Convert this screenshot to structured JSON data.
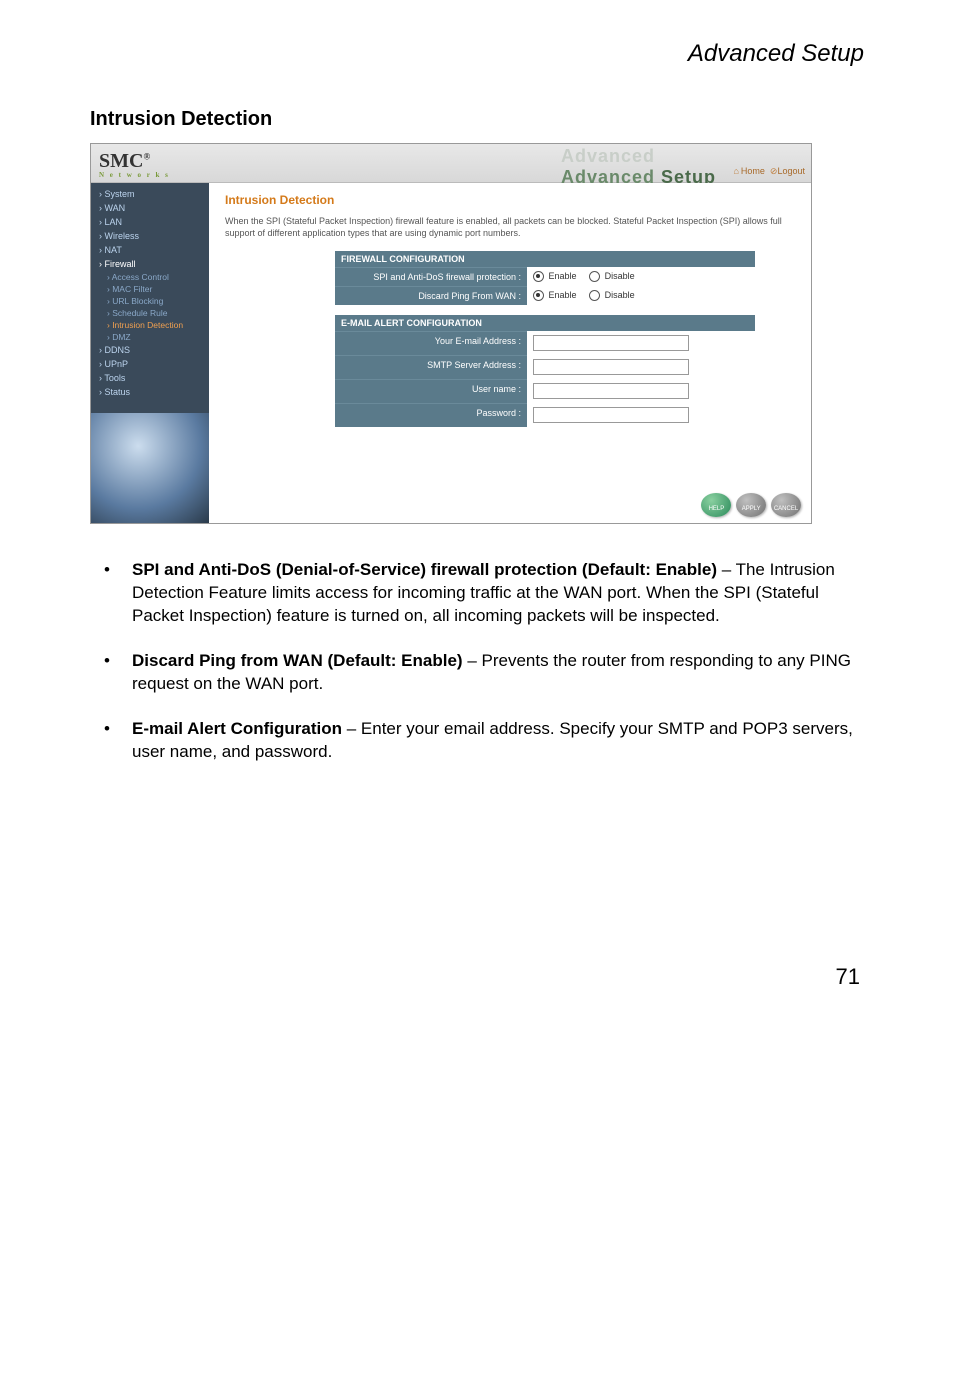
{
  "runningHead": "Advanced Setup",
  "sectionTitle": "Intrusion Detection",
  "screenshot": {
    "logo": "SMC",
    "logoR": "®",
    "logoSub": "N e t w o r k s",
    "ghostText": "Advanced",
    "setupText1": "Advanced",
    "setupText2": " Setup",
    "homeLink": "Home",
    "logoutLink": "Logout",
    "nav": {
      "items": [
        {
          "label": "System",
          "cls": "item"
        },
        {
          "label": "WAN",
          "cls": "item"
        },
        {
          "label": "LAN",
          "cls": "item"
        },
        {
          "label": "Wireless",
          "cls": "item"
        },
        {
          "label": "NAT",
          "cls": "item"
        },
        {
          "label": "Firewall",
          "cls": "item white"
        },
        {
          "label": "Access Control",
          "cls": "sub"
        },
        {
          "label": "MAC Filter",
          "cls": "sub"
        },
        {
          "label": "URL Blocking",
          "cls": "sub"
        },
        {
          "label": "Schedule Rule",
          "cls": "sub"
        },
        {
          "label": "Intrusion Detection",
          "cls": "sub sel"
        },
        {
          "label": "DMZ",
          "cls": "sub"
        },
        {
          "label": "DDNS",
          "cls": "item"
        },
        {
          "label": "UPnP",
          "cls": "item"
        },
        {
          "label": "Tools",
          "cls": "item"
        },
        {
          "label": "Status",
          "cls": "item"
        }
      ]
    },
    "main": {
      "title": "Intrusion Detection",
      "desc": "When the SPI (Stateful Packet Inspection) firewall feature is enabled, all packets can be blocked. Stateful Packet Inspection (SPI) allows full support of different application types that are using dynamic port numbers.",
      "fwHead": "FIREWALL CONFIGURATION",
      "row1Label": "SPI and Anti-DoS firewall protection :",
      "row2Label": "Discard Ping From WAN :",
      "enable": "Enable",
      "disable": "Disable",
      "emailHead": "E-MAIL ALERT CONFIGURATION",
      "emailRow1": "Your E-mail Address :",
      "emailRow2": "SMTP Server Address :",
      "emailRow3": "User name :",
      "emailRow4": "Password :"
    },
    "buttons": {
      "help": "HELP",
      "apply": "APPLY",
      "cancel": "CANCEL"
    }
  },
  "bullets": [
    {
      "bold": "SPI and Anti-DoS (Denial-of-Service) firewall protection (Default: Enable)",
      "rest": " – The Intrusion Detection Feature limits access for incoming traffic at the WAN port. When the SPI (Stateful Packet Inspection) feature is turned on, all incoming packets will be inspected."
    },
    {
      "bold": "Discard Ping from WAN (Default: Enable)",
      "rest": " – Prevents the router from responding to any PING request on the WAN port."
    },
    {
      "bold": "E-mail Alert Configuration",
      "rest": " – Enter your email address. Specify your SMTP and POP3 servers, user name, and password."
    }
  ],
  "pageNum": "71"
}
